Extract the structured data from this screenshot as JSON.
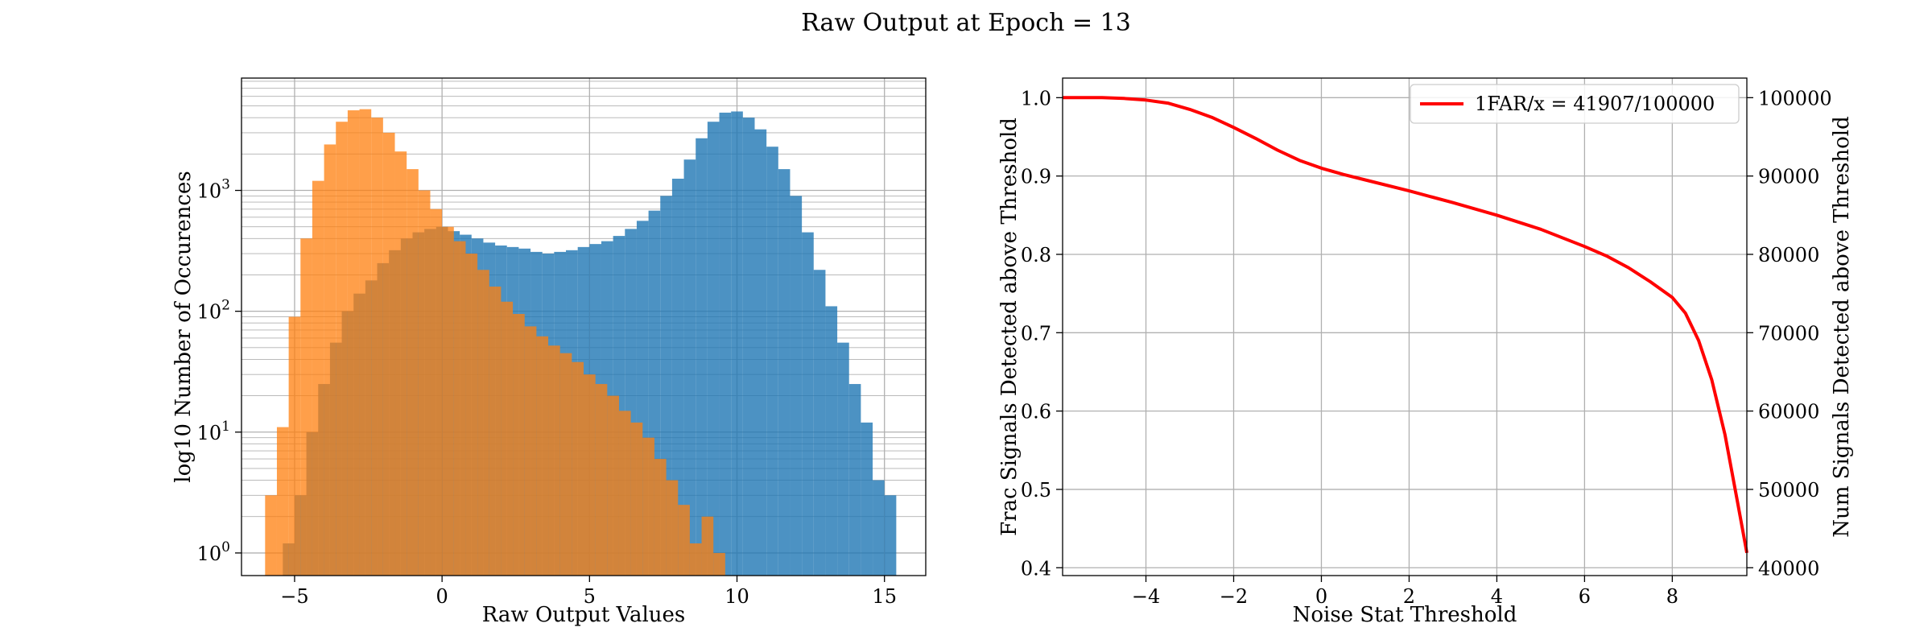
{
  "figure": {
    "title": "Raw Output at Epoch = 13"
  },
  "colors": {
    "noise": "#1f77b4",
    "signal": "#ff7f0e",
    "curve": "#ff0000"
  },
  "chart_data": [
    {
      "type": "bar",
      "subtype": "histogram",
      "xlabel": "Raw Output Values",
      "ylabel": "log10 Number of Occurences",
      "yscale": "log",
      "xlim": [
        -6.8,
        16.4
      ],
      "ylim": [
        0.65,
        8500
      ],
      "xticks": [
        -5,
        0,
        5,
        10,
        15
      ],
      "xtick_labels": [
        "−5",
        "0",
        "5",
        "10",
        "15"
      ],
      "yticks": [
        1,
        10,
        100,
        1000
      ],
      "grid": true,
      "series": [
        {
          "color_key": "noise",
          "alpha": 0.8,
          "points": [
            [
              -5.2,
              1.2
            ],
            [
              -4.8,
              3.0
            ],
            [
              -4.4,
              10
            ],
            [
              -4.0,
              25
            ],
            [
              -3.6,
              55
            ],
            [
              -3.2,
              100
            ],
            [
              -2.8,
              140
            ],
            [
              -2.4,
              180
            ],
            [
              -2.0,
              250
            ],
            [
              -1.6,
              320
            ],
            [
              -1.2,
              400
            ],
            [
              -0.8,
              450
            ],
            [
              -0.4,
              480
            ],
            [
              0.0,
              500
            ],
            [
              0.4,
              460
            ],
            [
              0.8,
              430
            ],
            [
              1.2,
              400
            ],
            [
              1.6,
              370
            ],
            [
              2.0,
              350
            ],
            [
              2.4,
              340
            ],
            [
              2.8,
              330
            ],
            [
              3.2,
              310
            ],
            [
              3.6,
              300
            ],
            [
              4.0,
              310
            ],
            [
              4.4,
              320
            ],
            [
              4.8,
              340
            ],
            [
              5.2,
              360
            ],
            [
              5.6,
              380
            ],
            [
              6.0,
              420
            ],
            [
              6.4,
              480
            ],
            [
              6.8,
              560
            ],
            [
              7.2,
              680
            ],
            [
              7.6,
              900
            ],
            [
              8.0,
              1250
            ],
            [
              8.4,
              1800
            ],
            [
              8.8,
              2700
            ],
            [
              9.2,
              3700
            ],
            [
              9.6,
              4400
            ],
            [
              10.0,
              4500
            ],
            [
              10.4,
              4000
            ],
            [
              10.8,
              3200
            ],
            [
              11.2,
              2300
            ],
            [
              11.6,
              1500
            ],
            [
              12.0,
              900
            ],
            [
              12.4,
              450
            ],
            [
              12.8,
              220
            ],
            [
              13.2,
              110
            ],
            [
              13.6,
              55
            ],
            [
              14.0,
              25
            ],
            [
              14.4,
              12
            ],
            [
              14.8,
              4
            ],
            [
              15.2,
              3
            ]
          ]
        },
        {
          "color_key": "signal",
          "alpha": 0.75,
          "points": [
            [
              -5.8,
              3
            ],
            [
              -5.4,
              11
            ],
            [
              -5.0,
              90
            ],
            [
              -4.6,
              400
            ],
            [
              -4.2,
              1200
            ],
            [
              -3.8,
              2400
            ],
            [
              -3.4,
              3700
            ],
            [
              -3.0,
              4600
            ],
            [
              -2.6,
              4700
            ],
            [
              -2.2,
              4000
            ],
            [
              -1.8,
              3000
            ],
            [
              -1.4,
              2100
            ],
            [
              -1.0,
              1500
            ],
            [
              -0.6,
              1000
            ],
            [
              -0.2,
              700
            ],
            [
              0.2,
              500
            ],
            [
              0.6,
              380
            ],
            [
              1.0,
              300
            ],
            [
              1.4,
              220
            ],
            [
              1.8,
              160
            ],
            [
              2.2,
              120
            ],
            [
              2.6,
              95
            ],
            [
              3.0,
              75
            ],
            [
              3.4,
              62
            ],
            [
              3.8,
              52
            ],
            [
              4.2,
              45
            ],
            [
              4.6,
              38
            ],
            [
              5.0,
              30
            ],
            [
              5.4,
              25
            ],
            [
              5.8,
              20
            ],
            [
              6.2,
              15
            ],
            [
              6.6,
              12
            ],
            [
              7.0,
              9
            ],
            [
              7.4,
              6
            ],
            [
              7.8,
              4
            ],
            [
              8.2,
              2.5
            ],
            [
              8.6,
              1.2
            ],
            [
              9.0,
              2
            ],
            [
              9.4,
              1
            ]
          ]
        }
      ]
    },
    {
      "type": "line",
      "xlabel": "Noise Stat Threshold",
      "ylabel": "Frac Signals Detected above Threshold",
      "ylabel_right": "Num Signals Detected above Threshold",
      "xlim": [
        -5.9,
        9.7
      ],
      "ylim": [
        0.39,
        1.025
      ],
      "xticks": [
        -4,
        -2,
        0,
        2,
        4,
        6,
        8
      ],
      "xtick_labels": [
        "−4",
        "−2",
        "0",
        "2",
        "4",
        "6",
        "8"
      ],
      "yticks": [
        0.4,
        0.5,
        0.6,
        0.7,
        0.8,
        0.9,
        1.0
      ],
      "ytick_labels": [
        "0.4",
        "0.5",
        "0.6",
        "0.7",
        "0.8",
        "0.9",
        "1.0"
      ],
      "ylim_right": [
        39000,
        102500
      ],
      "yticks_right": [
        40000,
        50000,
        60000,
        70000,
        80000,
        90000,
        100000
      ],
      "ytick_labels_right": [
        "40000",
        "50000",
        "60000",
        "70000",
        "80000",
        "90000",
        "100000"
      ],
      "grid": true,
      "legend_position": "top-right",
      "series": [
        {
          "name": "1FAR/x = 41907/100000",
          "color_key": "curve",
          "x": [
            -5.9,
            -5,
            -4.5,
            -4,
            -3.5,
            -3,
            -2.5,
            -2,
            -1.5,
            -1,
            -0.5,
            0,
            0.5,
            1,
            2,
            3,
            4,
            5,
            6,
            6.5,
            7,
            7.5,
            8,
            8.3,
            8.6,
            8.9,
            9.2,
            9.5,
            9.7
          ],
          "y": [
            1.0,
            1.0,
            0.999,
            0.997,
            0.993,
            0.985,
            0.975,
            0.962,
            0.948,
            0.933,
            0.92,
            0.91,
            0.902,
            0.895,
            0.881,
            0.866,
            0.85,
            0.832,
            0.81,
            0.798,
            0.783,
            0.765,
            0.745,
            0.725,
            0.69,
            0.64,
            0.57,
            0.48,
            0.419
          ]
        }
      ]
    }
  ]
}
